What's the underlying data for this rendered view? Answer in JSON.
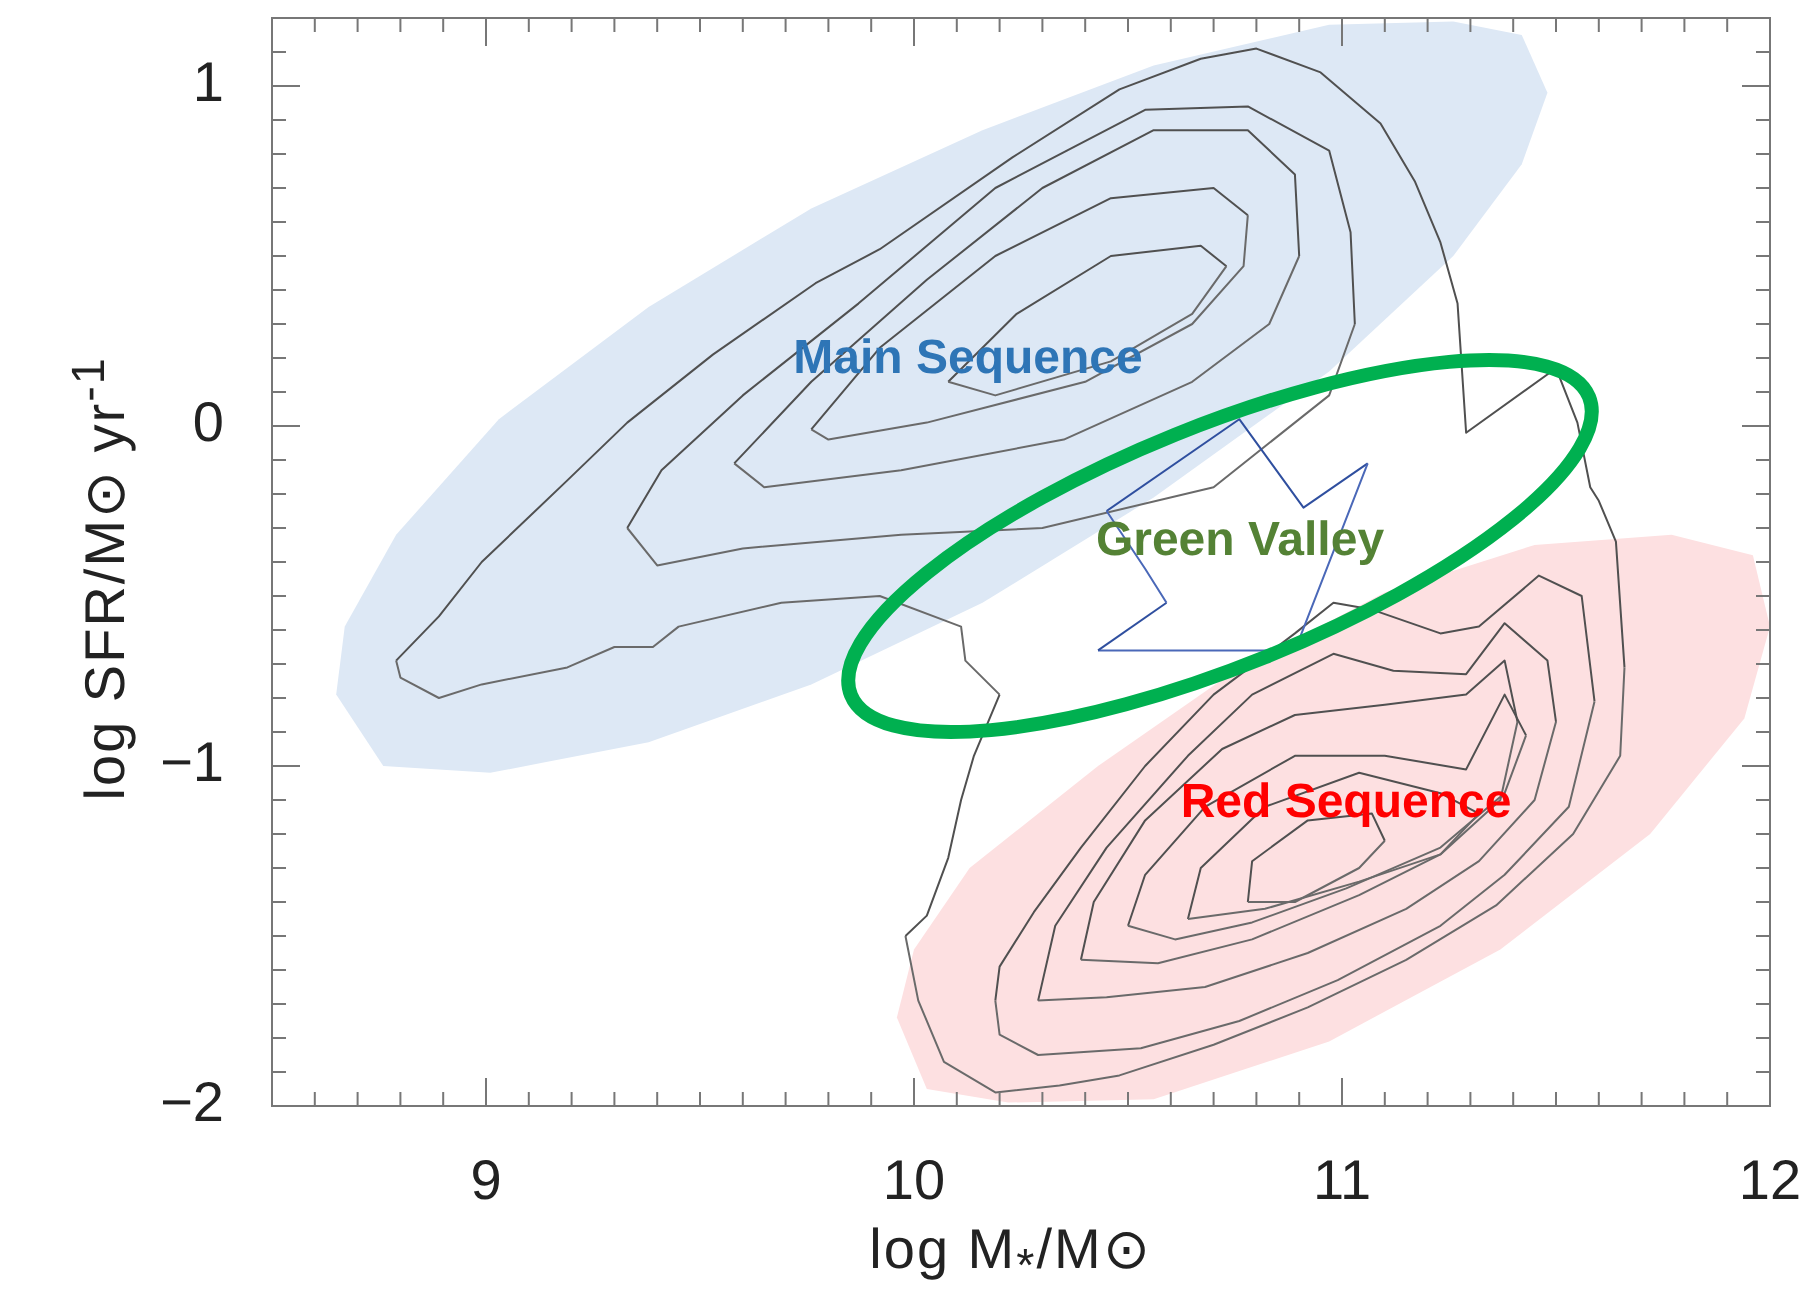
{
  "chart_data": {
    "type": "line",
    "xlabel": "log M$_{*}$/M⊙",
    "ylabel": "log SFR/M⊙ yr$^{-1}$",
    "xlim": [
      8.5,
      12
    ],
    "ylim": [
      -2,
      1.2
    ],
    "legend": false,
    "grid": false,
    "marker": "none",
    "xticks": [
      {
        "value": 8.6,
        "label": null
      },
      {
        "value": 8.7,
        "label": null
      },
      {
        "value": 8.8,
        "label": null
      },
      {
        "value": 8.9,
        "label": null
      },
      9,
      {
        "value": 9.1,
        "label": null
      },
      {
        "value": 9.2,
        "label": null
      },
      {
        "value": 9.3,
        "label": null
      },
      {
        "value": 9.4,
        "label": null
      },
      {
        "value": 9.5,
        "label": null
      },
      {
        "value": 9.6,
        "label": null
      },
      {
        "value": 9.7,
        "label": null
      },
      {
        "value": 9.8,
        "label": null
      },
      {
        "value": 9.9,
        "label": null
      },
      10,
      {
        "value": 10.1,
        "label": null
      },
      {
        "value": 10.2,
        "label": null
      },
      {
        "value": 10.3,
        "label": null
      },
      {
        "value": 10.4,
        "label": null
      },
      {
        "value": 10.5,
        "label": null
      },
      {
        "value": 10.6,
        "label": null
      },
      {
        "value": 10.7,
        "label": null
      },
      {
        "value": 10.8,
        "label": null
      },
      {
        "value": 10.9,
        "label": null
      },
      11,
      {
        "value": 11.1,
        "label": null
      },
      {
        "value": 11.2,
        "label": null
      },
      {
        "value": 11.3,
        "label": null
      },
      {
        "value": 11.4,
        "label": null
      },
      {
        "value": 11.5,
        "label": null
      },
      {
        "value": 11.6,
        "label": null
      },
      {
        "value": 11.7,
        "label": null
      },
      {
        "value": 11.8,
        "label": null
      },
      {
        "value": 11.9,
        "label": null
      },
      12
    ],
    "yticks": [
      {
        "value": -2,
        "label": "−2"
      },
      {
        "value": -1.9,
        "label": null
      },
      {
        "value": -1.8,
        "label": null
      },
      {
        "value": -1.7,
        "label": null
      },
      {
        "value": -1.6,
        "label": null
      },
      {
        "value": -1.5,
        "label": null
      },
      {
        "value": -1.4,
        "label": null
      },
      {
        "value": -1.3,
        "label": null
      },
      {
        "value": -1.2,
        "label": null
      },
      {
        "value": -1.1,
        "label": null
      },
      {
        "value": -1,
        "label": "−1"
      },
      {
        "value": -0.9,
        "label": null
      },
      {
        "value": -0.8,
        "label": null
      },
      {
        "value": -0.7,
        "label": null
      },
      {
        "value": -0.6,
        "label": null
      },
      {
        "value": -0.5,
        "label": null
      },
      {
        "value": -0.4,
        "label": null
      },
      {
        "value": -0.3,
        "label": null
      },
      {
        "value": -0.2,
        "label": null
      },
      {
        "value": -0.1,
        "label": null
      },
      0,
      {
        "value": 0.1,
        "label": null
      },
      {
        "value": 0.2,
        "label": null
      },
      {
        "value": 0.3,
        "label": null
      },
      {
        "value": 0.4,
        "label": null
      },
      {
        "value": 0.5,
        "label": null
      },
      {
        "value": 0.6,
        "label": null
      },
      {
        "value": 0.7,
        "label": null
      },
      {
        "value": 0.8,
        "label": null
      },
      {
        "value": 0.9,
        "label": null
      },
      1,
      {
        "value": 1.1,
        "label": null
      }
    ],
    "annotations": [
      "Main Sequence",
      "Green Valley",
      "Red Sequence"
    ],
    "series": [
      {
        "type": "area",
        "color": "#dde8f5",
        "x": [
          8.65,
          8.76,
          9.01,
          9.38,
          9.76,
          10.16,
          10.56,
          10.97,
          11.26,
          11.42,
          11.48,
          11.42,
          11.26,
          10.97,
          10.56,
          10.16,
          9.76,
          9.38,
          9.03,
          8.79,
          8.67,
          8.65
        ],
        "values": [
          -0.79,
          -1.0,
          -1.02,
          -0.93,
          -0.76,
          -0.52,
          -0.21,
          0.16,
          0.5,
          0.77,
          0.98,
          1.15,
          1.19,
          1.18,
          1.06,
          0.87,
          0.64,
          0.35,
          0.02,
          -0.32,
          -0.59,
          -0.79
        ]
      },
      {
        "type": "area",
        "color": "#fde0e1",
        "x": [
          9.96,
          10.03,
          10.22,
          10.56,
          10.97,
          11.37,
          11.72,
          11.94,
          12.0,
          11.96,
          11.77,
          11.45,
          11.1,
          10.75,
          10.43,
          10.13,
          10.0,
          9.96
        ],
        "values": [
          -1.74,
          -1.95,
          -1.99,
          -1.98,
          -1.81,
          -1.54,
          -1.2,
          -0.86,
          -0.59,
          -0.38,
          -0.32,
          -0.35,
          -0.49,
          -0.72,
          -1.0,
          -1.3,
          -1.54,
          -1.74
        ]
      },
      {
        "color": "#505050",
        "x": [
          8.79,
          8.89,
          8.99,
          9.19,
          9.33,
          9.53,
          9.77,
          9.92,
          10.23,
          10.48,
          10.67,
          10.8,
          10.95,
          11.09,
          11.17,
          11.23,
          11.27,
          11.29,
          11.5,
          11.55,
          11.58,
          11.6,
          11.64,
          11.66
        ],
        "values": [
          -0.69,
          -0.56,
          -0.4,
          -0.16,
          0.01,
          0.21,
          0.42,
          0.52,
          0.79,
          0.99,
          1.08,
          1.11,
          1.04,
          0.89,
          0.72,
          0.54,
          0.36,
          -0.02,
          0.17,
          0.01,
          -0.18,
          -0.22,
          -0.34,
          -0.71
        ]
      },
      {
        "color": "#6a6a6a",
        "x": [
          8.79,
          8.8,
          8.89,
          8.99,
          9.19,
          9.3,
          9.39,
          9.45,
          9.69,
          9.92,
          10.11,
          10.12,
          10.2
        ],
        "values": [
          -0.69,
          -0.74,
          -0.8,
          -0.76,
          -0.71,
          -0.65,
          -0.65,
          -0.59,
          -0.52,
          -0.5,
          -0.59,
          -0.69,
          -0.79
        ]
      },
      {
        "color": "#505050",
        "x": [
          9.98,
          10.03,
          10.08,
          10.11,
          10.14,
          10.2
        ],
        "values": [
          -1.5,
          -1.44,
          -1.27,
          -1.1,
          -0.97,
          -0.79
        ]
      },
      {
        "color": "#6a6a6a",
        "x": [
          9.98,
          10.01,
          10.07,
          10.19,
          10.34,
          10.48,
          10.7,
          10.92,
          11.15,
          11.36,
          11.54,
          11.65,
          11.66
        ],
        "values": [
          -1.5,
          -1.69,
          -1.87,
          -1.96,
          -1.94,
          -1.91,
          -1.82,
          -1.71,
          -1.57,
          -1.41,
          -1.2,
          -0.97,
          -0.71
        ]
      },
      {
        "color": "#505050",
        "x": [
          9.33,
          9.41,
          9.6,
          9.87,
          10.19,
          10.54,
          10.78,
          10.97,
          11.02,
          11.03
        ],
        "values": [
          -0.3,
          -0.13,
          0.09,
          0.36,
          0.7,
          0.93,
          0.94,
          0.81,
          0.57,
          0.3
        ]
      },
      {
        "color": "#6a6a6a",
        "x": [
          9.33,
          9.4,
          9.6,
          9.97,
          10.3,
          10.7,
          10.97,
          11.03
        ],
        "values": [
          -0.3,
          -0.41,
          -0.36,
          -0.32,
          -0.3,
          -0.18,
          0.09,
          0.3
        ]
      },
      {
        "color": "#505050",
        "x": [
          9.58,
          9.76,
          10.03,
          10.3,
          10.56,
          10.78,
          10.89,
          10.9
        ],
        "values": [
          -0.11,
          0.13,
          0.43,
          0.7,
          0.87,
          0.87,
          0.74,
          0.5
        ]
      },
      {
        "color": "#6a6a6a",
        "x": [
          9.58,
          9.65,
          9.97,
          10.35,
          10.65,
          10.83,
          10.9
        ],
        "values": [
          -0.11,
          -0.18,
          -0.13,
          -0.04,
          0.13,
          0.3,
          0.5
        ]
      },
      {
        "color": "#505050",
        "x": [
          9.76,
          9.92,
          10.19,
          10.46,
          10.7,
          10.78
        ],
        "values": [
          -0.01,
          0.23,
          0.5,
          0.67,
          0.7,
          0.62
        ]
      },
      {
        "color": "#6a6a6a",
        "x": [
          9.76,
          9.8,
          10.03,
          10.4,
          10.65,
          10.77,
          10.78
        ],
        "values": [
          -0.01,
          -0.04,
          0.01,
          0.13,
          0.3,
          0.47,
          0.62
        ]
      },
      {
        "color": "#505050",
        "x": [
          10.08,
          10.24,
          10.46,
          10.67,
          10.73
        ],
        "values": [
          0.13,
          0.33,
          0.5,
          0.53,
          0.47
        ]
      },
      {
        "color": "#6a6a6a",
        "x": [
          10.08,
          10.19,
          10.46,
          10.65,
          10.73
        ],
        "values": [
          0.13,
          0.09,
          0.19,
          0.33,
          0.47
        ]
      },
      {
        "color": "#505050",
        "x": [
          10.19,
          10.2,
          10.28,
          10.39,
          10.54,
          10.7,
          10.89,
          10.98,
          11.07,
          11.23,
          11.32,
          11.46,
          11.56,
          11.59
        ],
        "values": [
          -1.69,
          -1.59,
          -1.43,
          -1.24,
          -1.0,
          -0.79,
          -0.61,
          -0.52,
          -0.54,
          -0.61,
          -0.59,
          -0.44,
          -0.5,
          -0.81
        ]
      },
      {
        "color": "#6a6a6a",
        "x": [
          10.19,
          10.2,
          10.29,
          10.53,
          10.76,
          10.99,
          11.23,
          11.38,
          11.53,
          11.59
        ],
        "values": [
          -1.69,
          -1.79,
          -1.85,
          -1.83,
          -1.75,
          -1.63,
          -1.47,
          -1.32,
          -1.12,
          -0.81
        ]
      },
      {
        "color": "#505050",
        "x": [
          10.29,
          10.33,
          10.45,
          10.64,
          10.79,
          10.98,
          11.12,
          11.29,
          11.38,
          11.48,
          11.5
        ],
        "values": [
          -1.69,
          -1.47,
          -1.24,
          -0.97,
          -0.79,
          -0.67,
          -0.72,
          -0.73,
          -0.58,
          -0.69,
          -0.87
        ]
      },
      {
        "color": "#6a6a6a",
        "x": [
          10.29,
          10.45,
          10.68,
          10.92,
          11.15,
          11.32,
          11.45,
          11.5
        ],
        "values": [
          -1.69,
          -1.68,
          -1.65,
          -1.55,
          -1.42,
          -1.28,
          -1.1,
          -0.87
        ]
      },
      {
        "color": "#505050",
        "x": [
          10.39,
          10.42,
          10.54,
          10.72,
          10.89,
          11.1,
          11.29,
          11.38,
          11.41
        ],
        "values": [
          -1.57,
          -1.4,
          -1.16,
          -0.95,
          -0.85,
          -0.82,
          -0.79,
          -0.69,
          -0.87
        ]
      },
      {
        "color": "#6a6a6a",
        "x": [
          10.39,
          10.57,
          10.79,
          11.04,
          11.23,
          11.37,
          11.41
        ],
        "values": [
          -1.57,
          -1.58,
          -1.51,
          -1.38,
          -1.26,
          -1.1,
          -0.87
        ]
      },
      {
        "color": "#505050",
        "x": [
          10.5,
          10.54,
          10.68,
          10.89,
          11.1,
          11.29,
          11.38,
          11.43
        ],
        "values": [
          -1.47,
          -1.32,
          -1.12,
          -0.97,
          -0.97,
          -1.01,
          -0.79,
          -0.91
        ]
      },
      {
        "color": "#6a6a6a",
        "x": [
          10.5,
          10.61,
          10.79,
          11.01,
          11.23,
          11.38,
          11.43
        ],
        "values": [
          -1.47,
          -1.51,
          -1.46,
          -1.36,
          -1.24,
          -1.08,
          -0.91
        ]
      },
      {
        "color": "#505050",
        "x": [
          10.64,
          10.67,
          10.82,
          11.04,
          11.23,
          11.32
        ],
        "values": [
          -1.45,
          -1.3,
          -1.12,
          -1.02,
          -1.08,
          -1.14
        ]
      },
      {
        "color": "#6a6a6a",
        "x": [
          10.64,
          10.82,
          11.04,
          11.23,
          11.32
        ],
        "values": [
          -1.45,
          -1.42,
          -1.34,
          -1.26,
          -1.14
        ]
      },
      {
        "color": "#505050",
        "x": [
          10.78,
          10.79,
          10.92,
          11.07,
          11.1
        ],
        "values": [
          -1.4,
          -1.28,
          -1.16,
          -1.14,
          -1.22
        ]
      },
      {
        "color": "#6a6a6a",
        "x": [
          10.78,
          10.89,
          11.04,
          11.1
        ],
        "values": [
          -1.4,
          -1.4,
          -1.3,
          -1.22
        ]
      },
      {
        "color": "#2f4f9f",
        "x": [
          10.45,
          10.76,
          10.91,
          11.06
        ],
        "values": [
          -0.25,
          0.02,
          -0.24,
          -0.11
        ]
      },
      {
        "color": "#4a68b8",
        "x": [
          10.43,
          10.89,
          11.06
        ],
        "values": [
          -0.66,
          -0.66,
          -0.11
        ]
      },
      {
        "color": "#2f4f9f",
        "x": [
          10.43,
          10.59
        ],
        "values": [
          -0.66,
          -0.52
        ]
      },
      {
        "color": "#4a68b8",
        "x": [
          10.45,
          10.54,
          10.59
        ],
        "values": [
          -0.25,
          -0.42,
          -0.52
        ]
      }
    ]
  }
}
